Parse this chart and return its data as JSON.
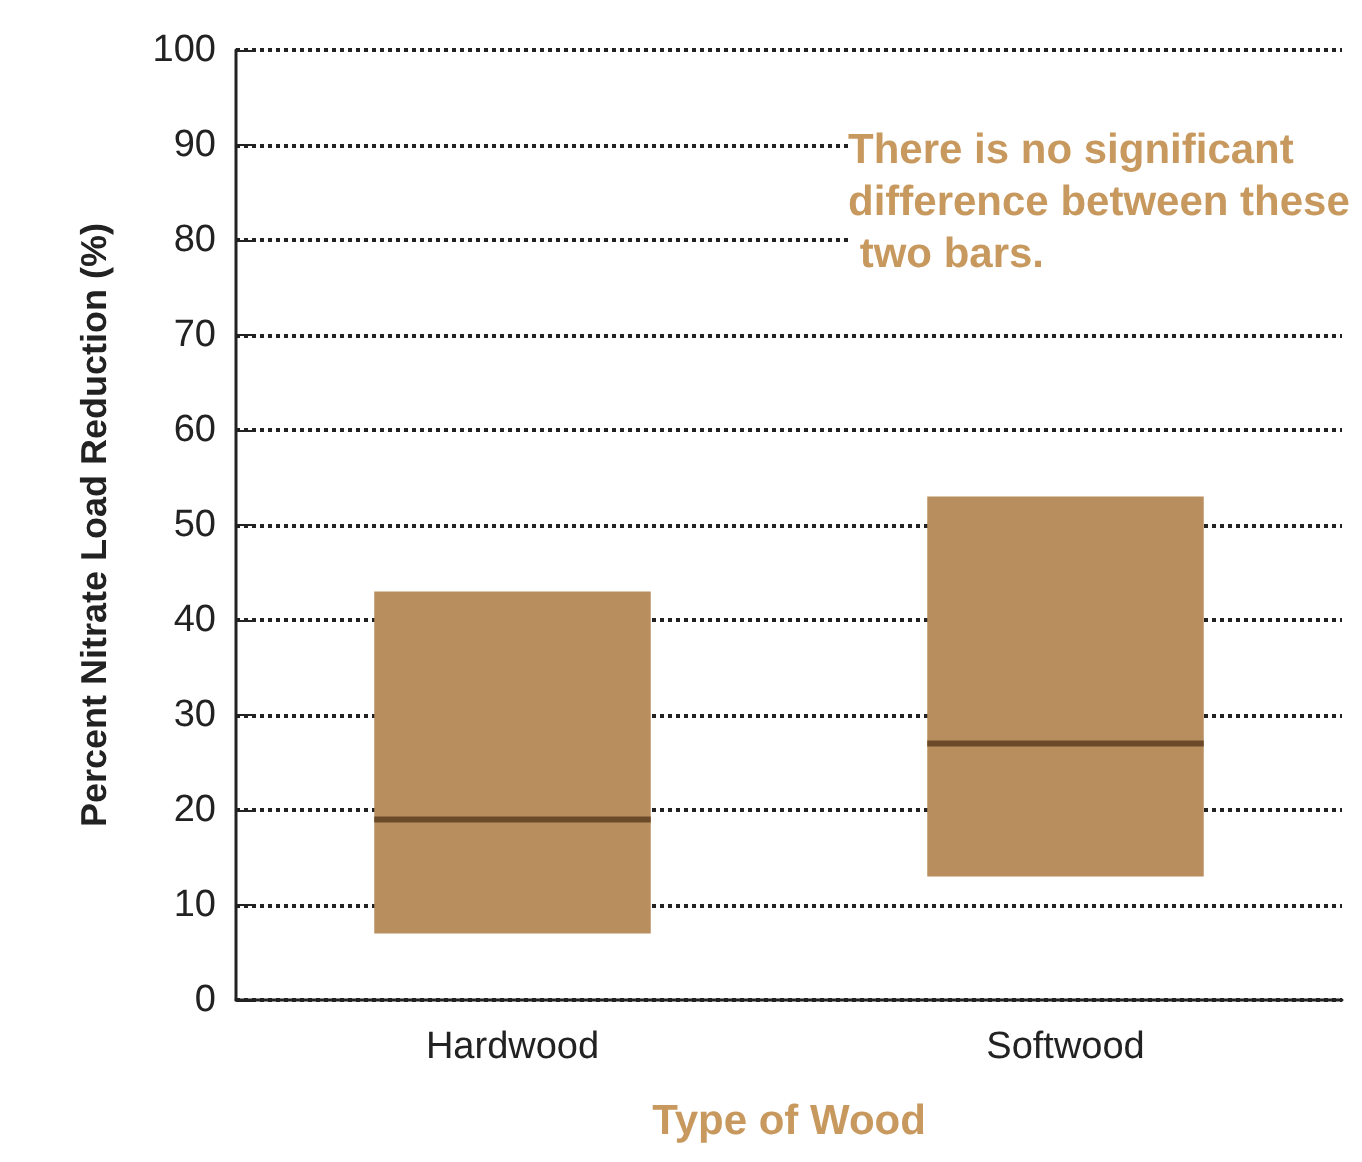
{
  "chart_data": {
    "type": "box",
    "xlabel": "Type of Wood",
    "ylabel": "Percent Nitrate Load Reduction (%)",
    "categories": [
      "Hardwood",
      "Softwood"
    ],
    "boxes": [
      {
        "low": 7,
        "q1": 7,
        "median": 19,
        "q3": 43,
        "high": 43
      },
      {
        "low": 13,
        "q1": 13,
        "median": 27,
        "q3": 53,
        "high": 53
      }
    ],
    "color": "#b98e5f",
    "ylim": [
      0,
      100
    ],
    "yticks": [
      0,
      10,
      20,
      30,
      40,
      50,
      60,
      70,
      80,
      90,
      100
    ],
    "grid": "y",
    "line_style": "dotted",
    "annotations": [
      "There is no significant difference between these two bars."
    ]
  }
}
